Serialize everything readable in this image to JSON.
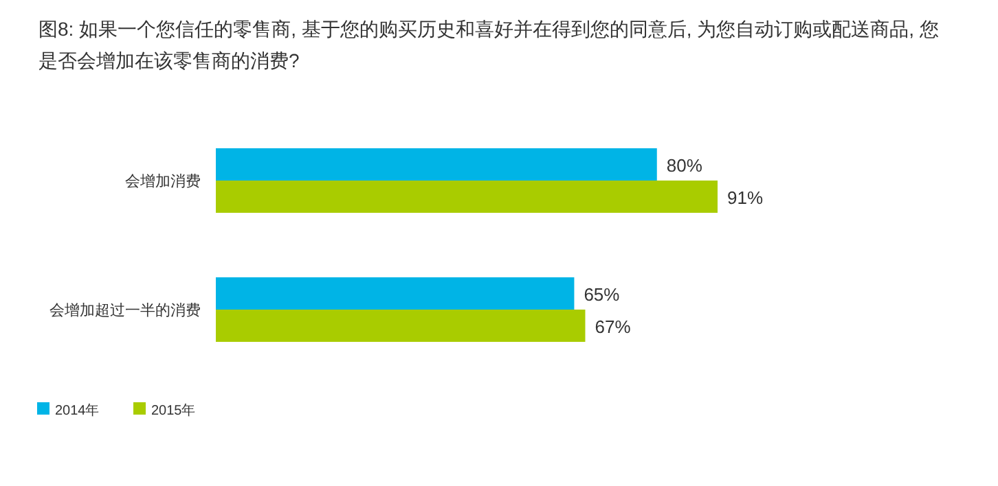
{
  "chart_data": {
    "type": "bar",
    "orientation": "horizontal",
    "title": "图8: 如果一个您信任的零售商, 基于您的购买历史和喜好并在得到您的同意后, 为您自动订购或配送商品, 您是否会增加在该零售商的消费?",
    "categories": [
      "会增加消费",
      "会增加超过一半的消费"
    ],
    "series": [
      {
        "name": "2014年",
        "color": "#00b4e6",
        "values": [
          80,
          65
        ],
        "value_labels": [
          "80%",
          "65%"
        ]
      },
      {
        "name": "2015年",
        "color": "#a9cc00",
        "values": [
          91,
          67
        ],
        "value_labels": [
          "91%",
          "67%"
        ]
      }
    ],
    "legend": "bottom left"
  }
}
